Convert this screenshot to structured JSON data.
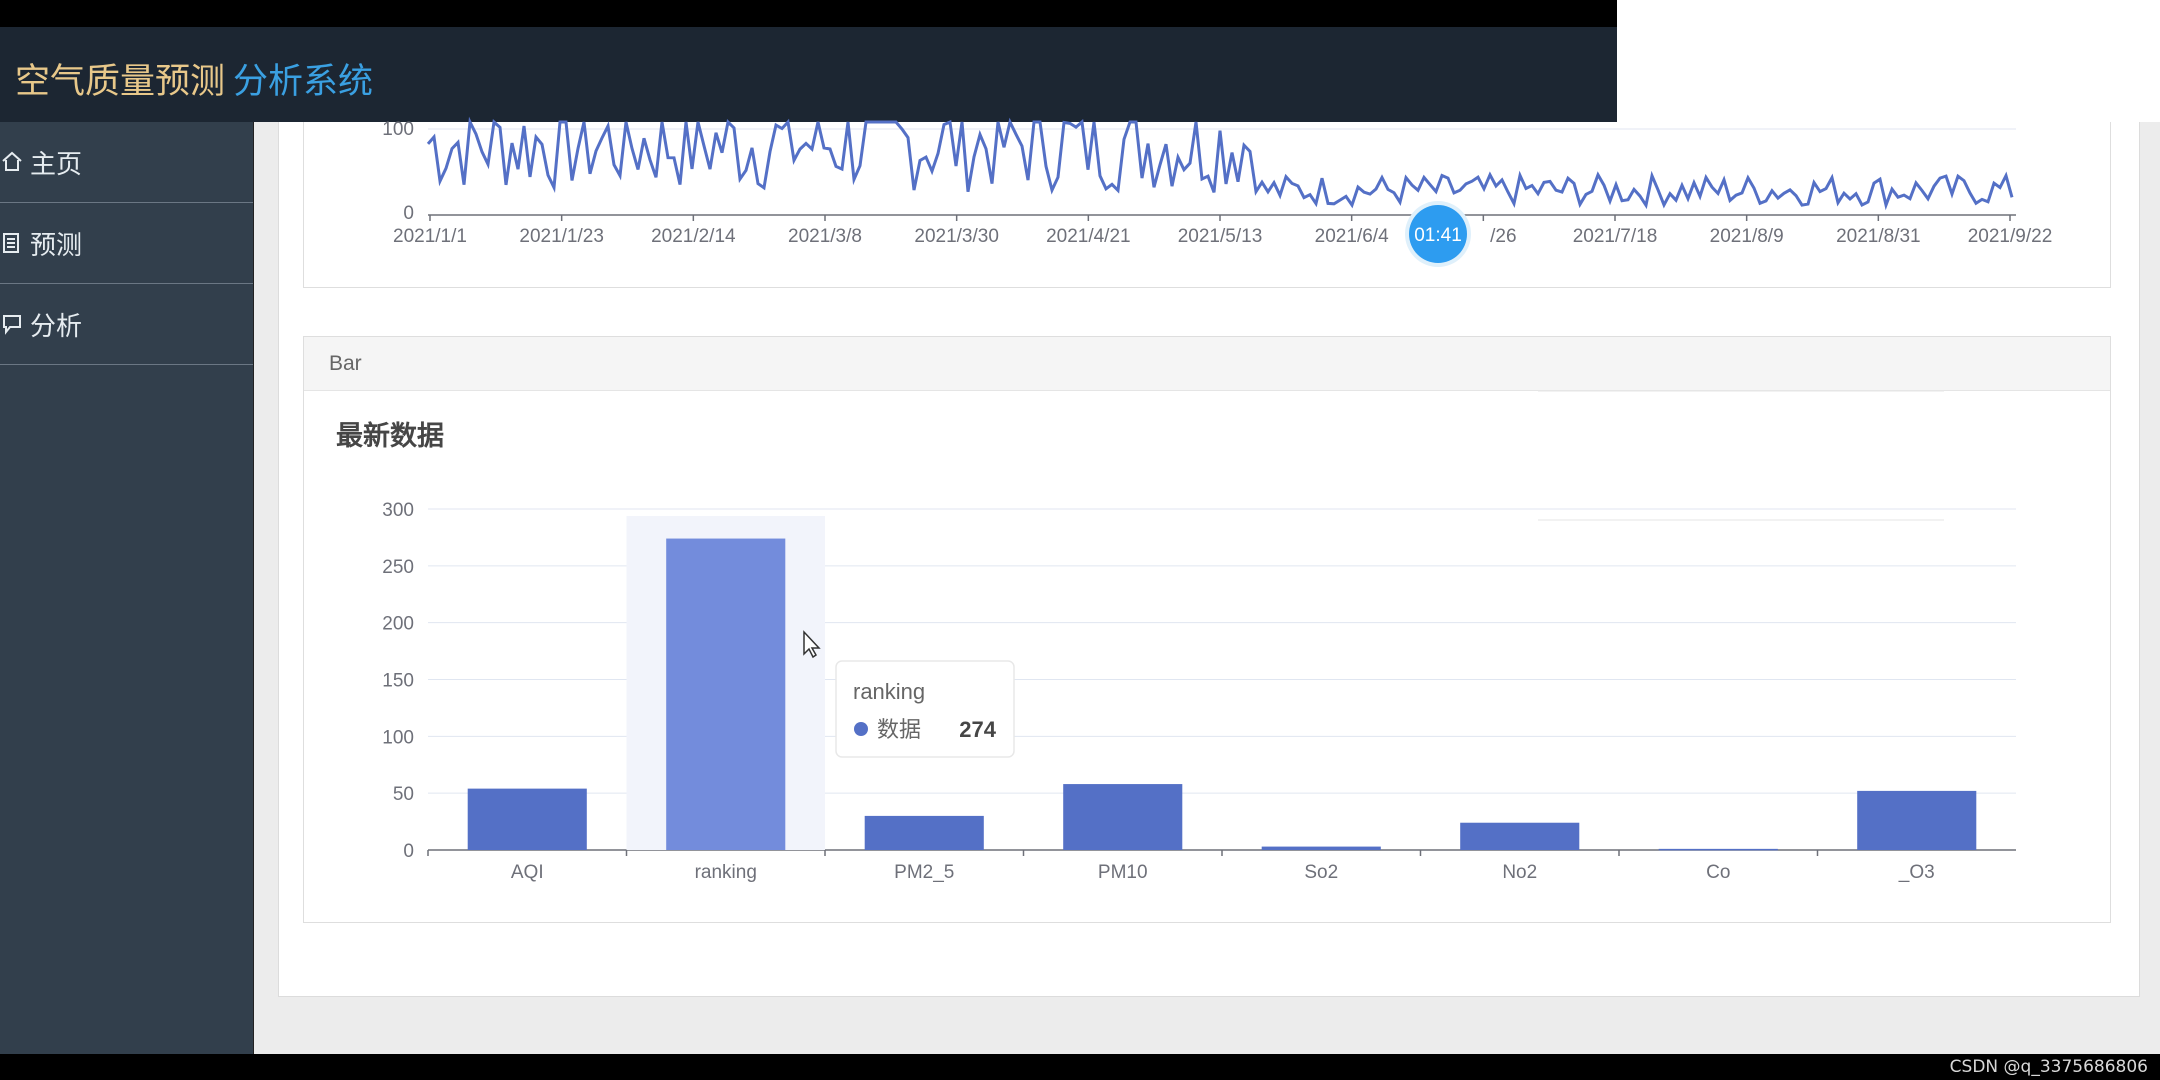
{
  "header": {
    "title_part1": "空气质量预测",
    "title_part2": "分析系统",
    "colors": {
      "part1": "#e8c88a",
      "part2": "#3aa0e2",
      "background": "#1c2632"
    }
  },
  "sidebar": {
    "items": [
      {
        "label": "主页",
        "icon": "home-icon"
      },
      {
        "label": "预测",
        "icon": "list-icon"
      },
      {
        "label": "分析",
        "icon": "comment-icon"
      }
    ]
  },
  "line_chart": {
    "y_ticks": [
      "0",
      "100"
    ],
    "x_ticks": [
      "2021/1/1",
      "2021/1/23",
      "2021/2/14",
      "2021/3/8",
      "2021/3/30",
      "2021/4/21",
      "2021/5/13",
      "2021/6/4",
      "/26",
      "2021/7/18",
      "2021/8/9",
      "2021/8/31",
      "2021/9/22"
    ],
    "line_color": "#5470c6"
  },
  "timer_badge": {
    "text": "01:41"
  },
  "bar_card": {
    "header": "Bar",
    "title": "最新数据"
  },
  "tooltip": {
    "title": "ranking",
    "series_label": "数据",
    "value": "274"
  },
  "chart_data": {
    "type": "bar",
    "categories": [
      "AQI",
      "ranking",
      "PM2_5",
      "PM10",
      "So2",
      "No2",
      "Co",
      "_O3"
    ],
    "series": [
      {
        "name": "数据",
        "values": [
          54,
          274,
          30,
          58,
          3,
          24,
          1,
          52
        ]
      }
    ],
    "ylim": [
      0,
      300
    ],
    "y_ticks": [
      "0",
      "50",
      "100",
      "150",
      "200",
      "250",
      "300"
    ],
    "bar_color": "#5470c6",
    "highlight_color": "#738cdc",
    "grid": true
  },
  "watermark": "CSDN @q_3375686806"
}
